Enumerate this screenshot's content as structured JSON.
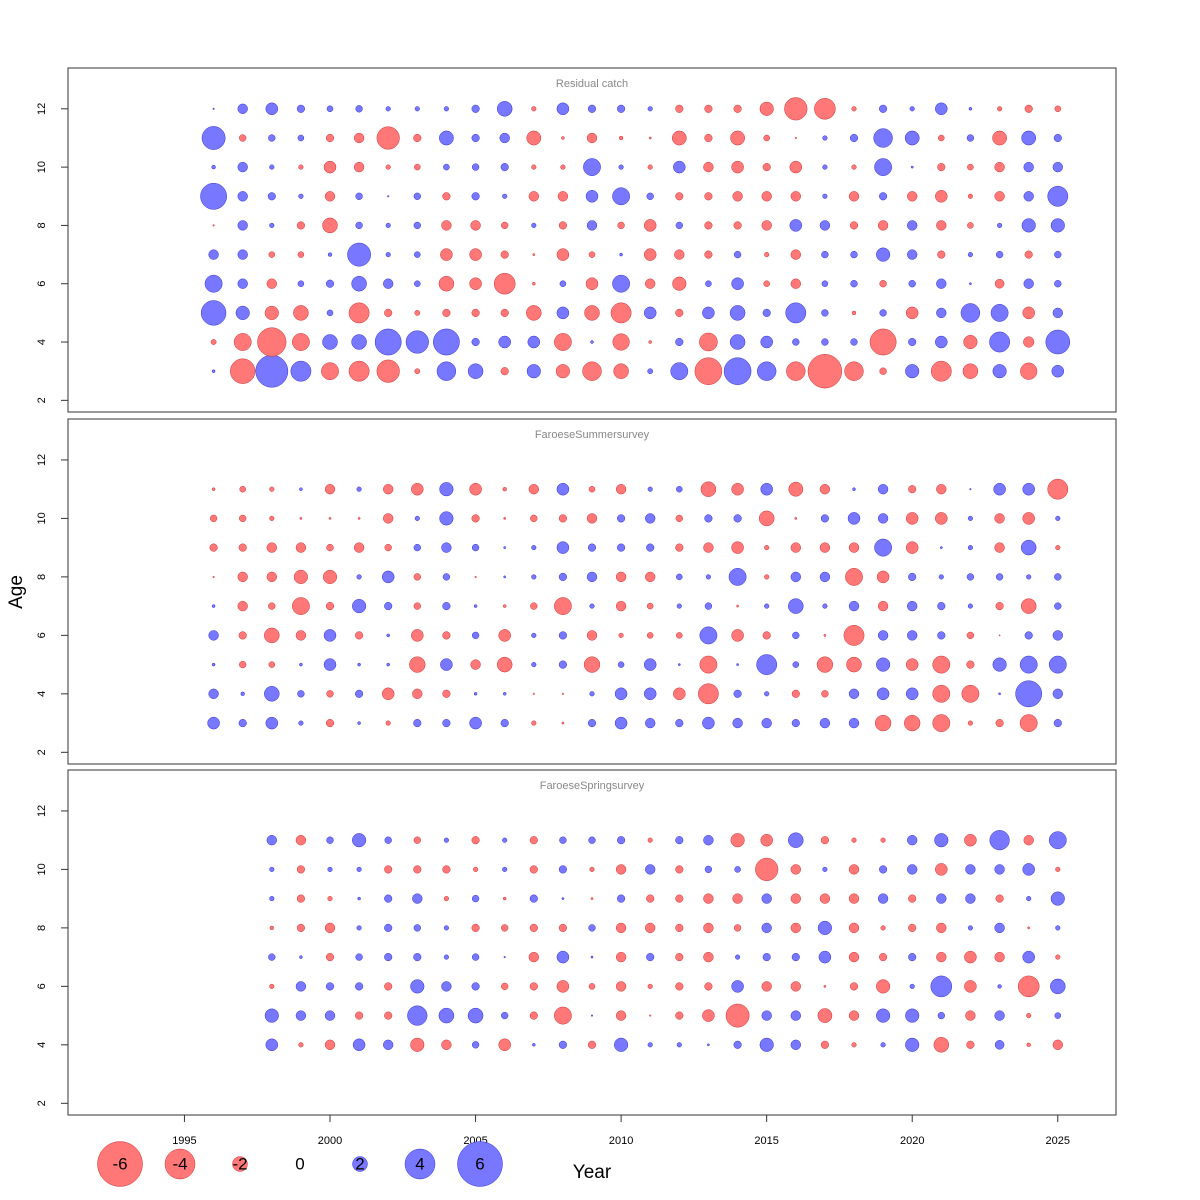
{
  "chart_data": {
    "type": "scatter",
    "subtype": "bubble-residuals",
    "xlabel": "Year",
    "ylabel": "Age",
    "xlim": [
      1991,
      2027
    ],
    "x_ticks": [
      1995,
      2000,
      2005,
      2010,
      2015,
      2020,
      2025
    ],
    "ylim": [
      1.6,
      13.4
    ],
    "y_ticks": [
      2,
      4,
      6,
      8,
      10,
      12
    ],
    "colors": {
      "positive": "#7777ff",
      "negative": "#ff7777",
      "positive_stroke": "#3333cc",
      "negative_stroke": "#cc3333"
    },
    "legend": {
      "placement": "bottom-left",
      "values": [
        -6,
        -4,
        -2,
        0,
        2,
        4,
        6
      ],
      "labels": [
        "-6",
        "-4",
        "-2",
        "0",
        "2",
        "4",
        "6"
      ]
    },
    "panels": [
      {
        "title": "Residual catch",
        "years": [
          1996,
          1997,
          1998,
          1999,
          2000,
          2001,
          2002,
          2003,
          2004,
          2005,
          2006,
          2007,
          2008,
          2009,
          2010,
          2011,
          2012,
          2013,
          2014,
          2015,
          2016,
          2017,
          2018,
          2019,
          2020,
          2021,
          2022,
          2023,
          2024,
          2025
        ],
        "ages": [
          3,
          4,
          5,
          6,
          7,
          8,
          9,
          10,
          11,
          12
        ],
        "residuals": [
          [
            0.4,
            -3.3,
            4.3,
            2.7,
            -2.3,
            -2.7,
            -3.0,
            -0.7,
            2.5,
            2.0,
            -1.0,
            1.8,
            -1.8,
            -2.5,
            -2.0,
            0.7,
            2.3,
            -3.6,
            3.6,
            2.5,
            -2.5,
            -4.5,
            -2.5,
            -0.9,
            1.8,
            -2.7,
            -2.0,
            1.8,
            -2.2,
            1.6
          ],
          [
            -0.7,
            -2.3,
            -3.8,
            -2.3,
            2.0,
            2.0,
            3.5,
            3.0,
            3.5,
            1.0,
            1.6,
            1.6,
            -2.3,
            0.4,
            -2.2,
            -0.4,
            1.0,
            -2.4,
            2.0,
            1.6,
            0.9,
            0.9,
            0.9,
            -3.5,
            1.0,
            1.6,
            -1.8,
            2.7,
            -1.4,
            3.2
          ],
          [
            3.3,
            1.8,
            -1.8,
            -2.0,
            0.8,
            -2.7,
            -1.0,
            -0.7,
            -1.0,
            -1.0,
            -1.0,
            -2.0,
            1.6,
            -2.0,
            -2.7,
            1.6,
            -1.0,
            1.6,
            2.0,
            1.0,
            2.7,
            0.9,
            -0.5,
            0.9,
            -1.6,
            1.3,
            2.5,
            2.3,
            -1.6,
            1.3
          ],
          [
            2.3,
            1.3,
            -1.3,
            0.8,
            1.0,
            2.0,
            1.3,
            0.8,
            -2.0,
            -1.6,
            -2.8,
            -0.4,
            0.8,
            -1.6,
            2.3,
            -1.3,
            -1.8,
            0.8,
            1.6,
            -0.8,
            -1.3,
            0.8,
            0.9,
            -0.9,
            0.9,
            1.3,
            0.3,
            -1.2,
            1.3,
            0.9
          ],
          [
            1.3,
            1.3,
            -0.8,
            -0.8,
            0.5,
            3.1,
            0.6,
            0.8,
            -1.6,
            -1.6,
            -1.0,
            -0.3,
            -1.6,
            -0.8,
            0.4,
            -1.6,
            -1.3,
            -1.0,
            0.9,
            -0.6,
            -1.3,
            0.9,
            0.9,
            1.8,
            1.3,
            -1.0,
            0.6,
            0.9,
            -1.0,
            0.9
          ],
          [
            -0.2,
            1.3,
            0.6,
            -1.0,
            -2.0,
            0.9,
            0.6,
            0.9,
            -1.3,
            -1.3,
            -0.9,
            0.6,
            -1.0,
            1.3,
            -0.9,
            -1.6,
            0.9,
            -1.0,
            -1.0,
            -1.3,
            1.6,
            1.3,
            -1.0,
            -1.3,
            1.3,
            -1.3,
            -0.8,
            0.6,
            1.8,
            1.8
          ],
          [
            3.5,
            1.3,
            1.0,
            0.6,
            -1.3,
            0.9,
            0.2,
            0.9,
            -1.0,
            1.0,
            0.6,
            -1.3,
            -1.3,
            1.6,
            2.3,
            0.9,
            -1.0,
            -1.0,
            -1.3,
            -1.3,
            -1.3,
            0.6,
            -1.3,
            1.0,
            -1.3,
            -1.6,
            -0.6,
            -1.3,
            1.3,
            2.7
          ],
          [
            0.5,
            1.3,
            0.6,
            -0.6,
            -1.6,
            -1.3,
            -0.6,
            -0.8,
            0.8,
            0.9,
            1.0,
            -0.6,
            -0.6,
            2.3,
            0.6,
            -0.6,
            1.6,
            -1.3,
            -1.6,
            -1.0,
            -1.6,
            0.6,
            -0.6,
            2.3,
            0.3,
            -1.0,
            -0.8,
            -1.3,
            1.3,
            1.3
          ],
          [
            3.1,
            -0.9,
            0.9,
            0.8,
            -1.0,
            -1.3,
            -3.0,
            -1.0,
            1.9,
            1.0,
            1.3,
            -1.9,
            -0.4,
            -1.3,
            -0.5,
            -0.3,
            -1.9,
            -1.0,
            -1.9,
            -0.8,
            -0.2,
            0.6,
            1.0,
            2.5,
            1.9,
            -0.8,
            0.9,
            -1.9,
            1.9,
            1.0
          ],
          [
            0.2,
            1.3,
            1.6,
            1.0,
            0.8,
            0.9,
            0.6,
            0.6,
            0.6,
            1.0,
            2.0,
            -0.6,
            1.6,
            1.0,
            1.0,
            0.6,
            -1.0,
            -1.0,
            -1.0,
            -1.8,
            -3.0,
            -2.8,
            -0.6,
            1.0,
            0.6,
            1.6,
            0.4,
            -0.6,
            -1.0,
            -0.8
          ]
        ]
      },
      {
        "title": "FaroeseSummersurvey",
        "years": [
          1996,
          1997,
          1998,
          1999,
          2000,
          2001,
          2002,
          2003,
          2004,
          2005,
          2006,
          2007,
          2008,
          2009,
          2010,
          2011,
          2012,
          2013,
          2014,
          2015,
          2016,
          2017,
          2018,
          2019,
          2020,
          2021,
          2022,
          2023,
          2024,
          2025
        ],
        "ages": [
          3,
          4,
          5,
          6,
          7,
          8,
          9,
          10,
          11
        ],
        "residuals": [
          [
            1.6,
            1.0,
            1.6,
            0.6,
            -1.0,
            0.4,
            -0.6,
            1.0,
            1.0,
            1.6,
            1.0,
            -0.6,
            -0.3,
            1.0,
            1.6,
            1.3,
            1.0,
            1.6,
            1.3,
            1.3,
            1.0,
            1.3,
            1.3,
            -2.1,
            -2.1,
            -2.3,
            -0.6,
            -1.0,
            -2.3,
            1.0
          ],
          [
            1.3,
            0.5,
            2.0,
            0.9,
            -0.9,
            1.0,
            -1.6,
            -1.3,
            -1.0,
            0.4,
            0.4,
            -0.2,
            -0.2,
            0.6,
            1.6,
            1.6,
            -1.6,
            -2.7,
            1.0,
            0.6,
            -1.0,
            -0.9,
            1.3,
            1.6,
            1.6,
            -2.3,
            -2.3,
            0.3,
            3.5,
            1.3
          ],
          [
            0.4,
            -0.9,
            -0.8,
            0.4,
            1.6,
            0.4,
            0.4,
            -2.1,
            1.6,
            -1.3,
            -2.0,
            0.6,
            1.0,
            -2.1,
            0.8,
            1.6,
            0.3,
            -2.3,
            0.3,
            2.7,
            0.8,
            -2.1,
            -2.0,
            1.8,
            -1.6,
            -2.3,
            -1.0,
            1.8,
            2.3,
            2.3
          ],
          [
            1.3,
            -1.0,
            -2.0,
            -1.3,
            1.6,
            -1.0,
            0.4,
            -1.6,
            -1.0,
            0.9,
            -1.6,
            0.6,
            1.0,
            -1.3,
            -0.6,
            -0.8,
            -0.8,
            2.3,
            -1.6,
            -1.0,
            0.9,
            -0.3,
            -2.7,
            1.3,
            1.3,
            1.0,
            -0.9,
            -0.1,
            1.0,
            1.3
          ],
          [
            0.4,
            -1.3,
            -0.9,
            -2.3,
            -1.0,
            1.8,
            1.0,
            -0.9,
            1.0,
            0.4,
            -0.4,
            -0.9,
            -2.3,
            0.6,
            -1.3,
            -0.8,
            0.6,
            0.9,
            -0.3,
            0.6,
            2.0,
            0.6,
            1.3,
            -1.3,
            1.3,
            1.0,
            0.6,
            -1.0,
            -2.0,
            0.9
          ],
          [
            -0.2,
            -1.3,
            -1.3,
            -1.8,
            -1.8,
            0.6,
            1.6,
            -0.9,
            0.9,
            -0.2,
            0.3,
            0.6,
            1.0,
            1.3,
            -1.3,
            -1.3,
            0.8,
            0.6,
            2.3,
            -0.6,
            1.3,
            1.3,
            -2.3,
            -1.6,
            1.0,
            0.6,
            0.9,
            0.9,
            0.6,
            0.9
          ],
          [
            -1.0,
            -1.0,
            -1.3,
            -1.3,
            -0.9,
            -1.3,
            -0.9,
            0.9,
            1.3,
            0.9,
            0.3,
            0.6,
            1.6,
            1.0,
            1.0,
            1.0,
            -1.0,
            -1.3,
            -1.6,
            -0.6,
            -1.3,
            -1.3,
            -1.3,
            2.3,
            -1.6,
            0.3,
            0.6,
            -1.3,
            2.0,
            -0.6
          ],
          [
            -0.9,
            -0.9,
            -0.6,
            -0.3,
            -0.3,
            -0.3,
            -1.3,
            0.6,
            1.8,
            -1.0,
            -0.3,
            -0.9,
            -1.0,
            -1.3,
            1.0,
            1.3,
            -0.9,
            1.0,
            1.0,
            -2.0,
            -0.3,
            1.0,
            1.6,
            1.3,
            -1.6,
            -1.6,
            0.6,
            -1.3,
            -1.6,
            0.6
          ],
          [
            -0.4,
            -0.8,
            -0.6,
            0.4,
            -1.3,
            0.6,
            -1.3,
            -1.6,
            1.8,
            -1.6,
            -0.5,
            -1.3,
            1.6,
            -0.8,
            -1.3,
            0.6,
            0.8,
            -2.0,
            -1.6,
            1.6,
            -1.9,
            -1.3,
            0.4,
            1.3,
            -1.0,
            -1.3,
            0.2,
            1.6,
            1.6,
            -2.7
          ]
        ]
      },
      {
        "title": "FaroeseSpringsurvey",
        "years": [
          1998,
          1999,
          2000,
          2001,
          2002,
          2003,
          2004,
          2005,
          2006,
          2007,
          2008,
          2009,
          2010,
          2011,
          2012,
          2013,
          2014,
          2015,
          2016,
          2017,
          2018,
          2019,
          2020,
          2021,
          2022,
          2023,
          2024,
          2025
        ],
        "ages": [
          4,
          5,
          6,
          7,
          8,
          9,
          10,
          11
        ],
        "residuals": [
          [
            1.6,
            -0.6,
            -1.3,
            1.6,
            1.3,
            -1.8,
            -1.3,
            0.9,
            -1.6,
            0.4,
            1.0,
            -1.0,
            1.8,
            0.6,
            0.6,
            0.3,
            1.0,
            1.8,
            1.3,
            -1.0,
            -0.6,
            0.6,
            1.8,
            -2.0,
            -1.0,
            1.2,
            -0.5,
            -1.3
          ],
          [
            1.8,
            1.3,
            1.3,
            -1.0,
            -1.0,
            2.6,
            2.0,
            2.0,
            0.9,
            -1.0,
            -2.3,
            0.2,
            -1.3,
            -0.2,
            -1.0,
            -1.6,
            -3.1,
            1.3,
            1.3,
            -1.9,
            -1.3,
            1.8,
            1.8,
            0.9,
            -1.3,
            1.3,
            -0.6,
            0.8
          ],
          [
            -0.6,
            1.3,
            1.0,
            1.0,
            -1.0,
            1.8,
            1.3,
            1.0,
            -0.9,
            -1.0,
            -1.6,
            -0.8,
            -1.3,
            -0.6,
            -1.0,
            -1.0,
            1.6,
            -1.3,
            -1.3,
            -0.3,
            -1.0,
            -1.8,
            0.6,
            2.8,
            -1.6,
            0.5,
            -2.8,
            2.0
          ],
          [
            0.9,
            0.4,
            -1.0,
            0.9,
            1.0,
            1.0,
            0.6,
            0.9,
            0.2,
            -1.3,
            1.6,
            0.3,
            -1.3,
            1.0,
            -1.0,
            -1.3,
            0.6,
            1.0,
            1.0,
            1.6,
            -1.3,
            -1.0,
            1.0,
            -1.3,
            -1.6,
            -1.3,
            1.6,
            -0.6
          ],
          [
            -0.5,
            -1.0,
            -1.3,
            0.6,
            1.0,
            0.9,
            0.6,
            -1.0,
            -0.9,
            -1.0,
            -1.0,
            0.9,
            -1.3,
            -1.3,
            -1.0,
            -1.3,
            -0.9,
            1.3,
            -1.3,
            1.8,
            -1.3,
            -0.6,
            -1.0,
            -1.3,
            0.6,
            1.3,
            -0.3,
            0.6
          ],
          [
            0.6,
            -1.0,
            -0.6,
            0.4,
            1.0,
            1.3,
            -0.6,
            0.9,
            -0.4,
            1.0,
            0.3,
            -0.3,
            1.0,
            -1.0,
            -1.0,
            -1.3,
            -1.3,
            1.3,
            -1.3,
            -1.3,
            -1.3,
            1.3,
            -1.0,
            1.3,
            1.3,
            -1.0,
            0.6,
            1.8
          ],
          [
            0.6,
            -1.0,
            0.6,
            0.6,
            -1.0,
            -1.0,
            -1.0,
            -0.6,
            0.6,
            -1.0,
            1.0,
            -0.6,
            -1.3,
            1.3,
            -1.0,
            0.9,
            0.8,
            -3.0,
            -1.3,
            0.6,
            -1.3,
            1.0,
            1.3,
            -1.6,
            1.3,
            1.3,
            1.6,
            -0.6
          ],
          [
            1.3,
            -1.3,
            0.9,
            1.8,
            0.9,
            -0.9,
            0.6,
            -1.0,
            0.6,
            -1.0,
            0.9,
            0.9,
            1.0,
            -0.6,
            1.0,
            1.3,
            -1.8,
            -1.6,
            2.0,
            -1.0,
            -0.6,
            -0.6,
            1.3,
            1.8,
            -1.6,
            2.6,
            -1.3,
            2.3
          ]
        ]
      }
    ]
  }
}
